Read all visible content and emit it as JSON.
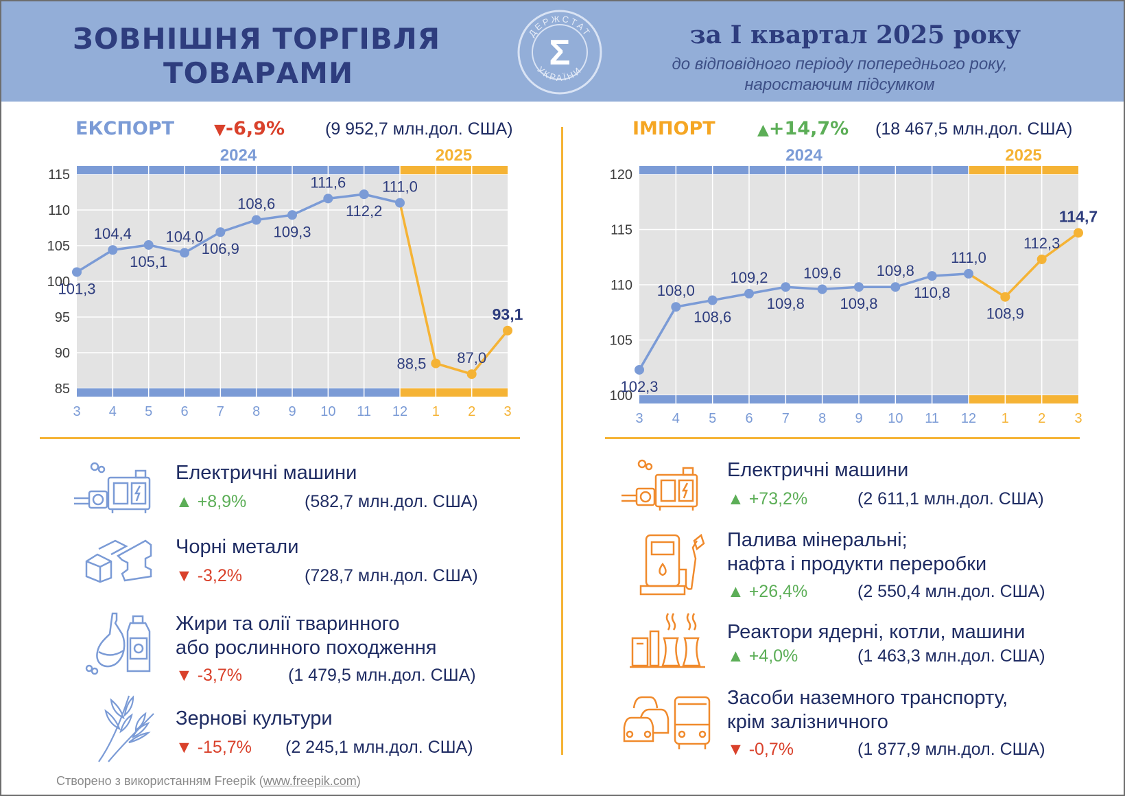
{
  "header": {
    "title_line1": "ЗОВНІШНЯ ТОРГІВЛЯ",
    "title_line2": "ТОВАРАМИ",
    "period": "за I квартал 2025 року",
    "subtitle_line1": "до відповідного періоду попереднього року,",
    "subtitle_line2": "наростаючим підсумком",
    "logo": {
      "text_top": "ДЕРЖСТАТ",
      "text_bottom": "УКРАЇНИ",
      "symbol": "Σ"
    }
  },
  "colors": {
    "blue": "#7b9bd6",
    "orange": "#f5b335",
    "navy": "#2e3d7e",
    "green": "#5cae57",
    "red": "#d9412b",
    "plot_bg": "#e3e3e3"
  },
  "export": {
    "label": "ЕКСПОРТ",
    "change": "-6,9%",
    "direction": "down",
    "total": "(9 952,7 млн.дол. США)",
    "items": [
      {
        "name_lines": [
          "Електричні машини"
        ],
        "change": "+8,9%",
        "direction": "up",
        "value": "(582,7 млн.дол. США)",
        "icon": "electric-machine-icon"
      },
      {
        "name_lines": [
          "Чорні метали"
        ],
        "change": "-3,2%",
        "direction": "down",
        "value": "(728,7 млн.дол. США)",
        "icon": "metal-profiles-icon"
      },
      {
        "name_lines": [
          "Жири та олії тваринного",
          "або рослинного походження"
        ],
        "change": "-3,7%",
        "direction": "down",
        "value": "(1 479,5 млн.дол. США)",
        "icon": "oil-bottles-icon"
      },
      {
        "name_lines": [
          "Зернові культури"
        ],
        "change": "-15,7%",
        "direction": "down",
        "value": "(2 245,1 млн.дол. США)",
        "icon": "wheat-icon"
      }
    ]
  },
  "import": {
    "label": "ІМПОРТ",
    "change": "+14,7%",
    "direction": "up",
    "total": "(18 467,5 млн.дол. США)",
    "items": [
      {
        "name_lines": [
          "Електричні машини"
        ],
        "change": "+73,2%",
        "direction": "up",
        "value": "(2 611,1 млн.дол. США)",
        "icon": "electric-machine-icon"
      },
      {
        "name_lines": [
          "Палива мінеральні;",
          "нафта і продукти переробки"
        ],
        "change": "+26,4%",
        "direction": "up",
        "value": "(2 550,4 млн.дол. США)",
        "icon": "fuel-pump-icon"
      },
      {
        "name_lines": [
          "Реактори ядерні, котли, машини"
        ],
        "change": "+4,0%",
        "direction": "up",
        "value": "(1 463,3 млн.дол. США)",
        "icon": "power-plant-icon"
      },
      {
        "name_lines": [
          "Засоби наземного транспорту,",
          "крім залізничного"
        ],
        "change": "-0,7%",
        "direction": "down",
        "value": "(1 877,9 млн.дол. США)",
        "icon": "vehicles-icon"
      }
    ]
  },
  "footer": {
    "text": "Створено з використанням Freepik",
    "link": "www.freepik.com"
  },
  "chart_data": [
    {
      "type": "line",
      "title": "ЕКСПОРТ",
      "year_bands": [
        "2024",
        "2025"
      ],
      "x": [
        "3",
        "4",
        "5",
        "6",
        "7",
        "8",
        "9",
        "10",
        "11",
        "12",
        "1",
        "2",
        "3"
      ],
      "year_of_x": [
        "2024",
        "2024",
        "2024",
        "2024",
        "2024",
        "2024",
        "2024",
        "2024",
        "2024",
        "2024",
        "2025",
        "2025",
        "2025"
      ],
      "series": [
        {
          "values": [
            101.3,
            104.4,
            105.1,
            104.0,
            106.9,
            108.6,
            109.3,
            111.6,
            112.2,
            111.0,
            88.5,
            87.0,
            93.1
          ]
        }
      ],
      "data_labels": [
        "101,3",
        "104,4",
        "105,1",
        "104,0",
        "106,9",
        "108,6",
        "109,3",
        "111,6",
        "112,2",
        "111,0",
        "88,5",
        "87,0",
        "93,1"
      ],
      "label_pos": [
        "below",
        "above",
        "below",
        "above",
        "below",
        "above",
        "below",
        "above",
        "below",
        "above",
        "left",
        "above",
        "above"
      ],
      "ylim": [
        85,
        115
      ],
      "yticks": [
        85,
        90,
        95,
        100,
        105,
        110,
        115
      ],
      "grid": true
    },
    {
      "type": "line",
      "title": "ІМПОРТ",
      "year_bands": [
        "2024",
        "2025"
      ],
      "x": [
        "3",
        "4",
        "5",
        "6",
        "7",
        "8",
        "9",
        "10",
        "11",
        "12",
        "1",
        "2",
        "3"
      ],
      "year_of_x": [
        "2024",
        "2024",
        "2024",
        "2024",
        "2024",
        "2024",
        "2024",
        "2024",
        "2024",
        "2024",
        "2025",
        "2025",
        "2025"
      ],
      "series": [
        {
          "values": [
            102.3,
            108.0,
            108.6,
            109.2,
            109.8,
            109.6,
            109.8,
            109.8,
            110.8,
            111.0,
            108.9,
            112.3,
            114.7
          ]
        }
      ],
      "data_labels": [
        "102,3",
        "108,0",
        "108,6",
        "109,2",
        "109,8",
        "109,6",
        "109,8",
        "109,8",
        "110,8",
        "111,0",
        "108,9",
        "112,3",
        "114,7"
      ],
      "label_pos": [
        "below",
        "above",
        "below",
        "above",
        "below",
        "above",
        "below",
        "above",
        "below",
        "above",
        "below",
        "above",
        "above"
      ],
      "ylim": [
        100,
        120
      ],
      "yticks": [
        100,
        105,
        110,
        115,
        120
      ],
      "grid": true
    }
  ]
}
